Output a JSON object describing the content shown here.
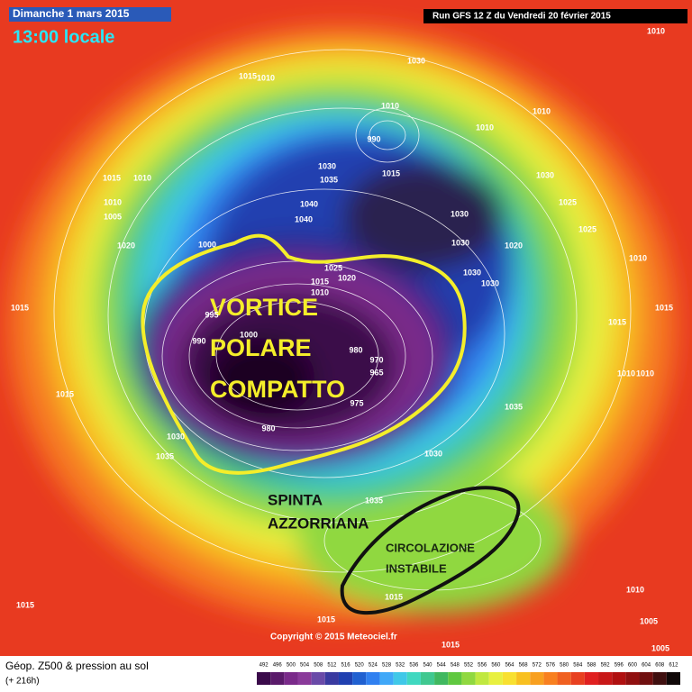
{
  "header": {
    "date": "Dimanche 1 mars 2015",
    "time": "13:00 locale",
    "run": "Run GFS 12 Z du Vendredi 20 février 2015"
  },
  "annotations": {
    "vortex": [
      "VORTICE",
      "POLARE",
      "COMPATTO"
    ],
    "push": [
      "SPINTA",
      "AZZORRIANA"
    ],
    "instability": [
      "CIRCOLAZIONE",
      "INSTABILE"
    ]
  },
  "isobar_labels": [
    1030,
    1010,
    1015,
    1010,
    1010,
    990,
    1010,
    1010,
    1030,
    1035,
    1015,
    1030,
    1015,
    1010,
    1010,
    1005,
    1040,
    1040,
    1025,
    1030,
    1030,
    1020,
    1025,
    1020,
    1000,
    1025,
    1020,
    1030,
    1030,
    1010,
    1015,
    1010,
    1015,
    995,
    1000,
    990,
    980,
    970,
    965,
    1015,
    1015,
    1010,
    1010,
    1015,
    975,
    980,
    1035,
    1030,
    1035,
    1030,
    1035,
    1015,
    1015,
    1015,
    1015,
    1010,
    1005,
    1005
  ],
  "copyright": "Copyright © 2015 Meteociel.fr",
  "footer": {
    "title": "Géop. Z500 & pression au sol",
    "lead": "(+ 216h)"
  },
  "scale": {
    "values": [
      492,
      496,
      500,
      504,
      508,
      512,
      516,
      520,
      524,
      528,
      532,
      536,
      540,
      544,
      548,
      552,
      556,
      560,
      564,
      568,
      572,
      576,
      580,
      584,
      588,
      592,
      596,
      600,
      604,
      608,
      612
    ],
    "colors": [
      "#3a0a4a",
      "#5a1a6a",
      "#7a2a8a",
      "#8a3a9a",
      "#6a4aa8",
      "#3a3aa0",
      "#2040b0",
      "#2060d0",
      "#3080f0",
      "#40a8f8",
      "#40c8e8",
      "#40d8c0",
      "#40c890",
      "#40b860",
      "#60c840",
      "#90d840",
      "#c0e840",
      "#e8f040",
      "#f8e030",
      "#f8c020",
      "#f8a020",
      "#f88020",
      "#f06020",
      "#e84020",
      "#e02020",
      "#c81818",
      "#b01010",
      "#901010",
      "#701010",
      "#401010",
      "#100808"
    ]
  }
}
